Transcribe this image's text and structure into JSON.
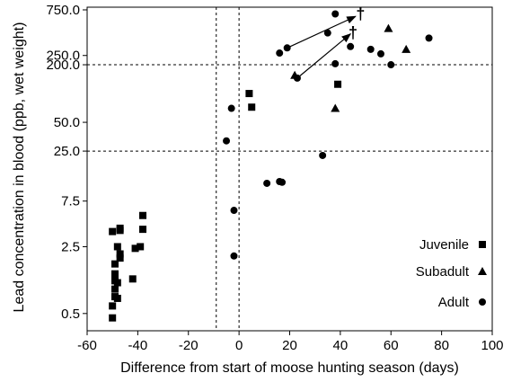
{
  "chart_data": {
    "type": "scatter",
    "xlabel": "Difference from start of moose hunting season (days)",
    "ylabel": "Lead concentration in blood (ppb, wet weight)",
    "xlim": [
      -60,
      100
    ],
    "x_ticks": [
      -60,
      -40,
      -20,
      0,
      20,
      40,
      60,
      80,
      100
    ],
    "y_scale": "log",
    "ylim": [
      0.33,
      800
    ],
    "y_ticks": [
      0.5,
      2.5,
      7.5,
      25.0,
      50.0,
      200.0,
      250.0,
      750.0
    ],
    "y_tick_labels": [
      "0.5",
      "2.5",
      "7.5",
      "25.0",
      "50.0",
      "200.0",
      "250.0",
      "750.0"
    ],
    "reference_lines": {
      "vertical": [
        -9,
        0
      ],
      "horizontal": [
        25,
        200
      ]
    },
    "legend_position": "bottom-right",
    "series": [
      {
        "name": "Juvenile",
        "marker": "square",
        "points": [
          [
            -50,
            0.45
          ],
          [
            -50,
            0.6
          ],
          [
            -49,
            0.75
          ],
          [
            -48,
            0.72
          ],
          [
            -49,
            0.9
          ],
          [
            -49,
            1.1
          ],
          [
            -48,
            1.05
          ],
          [
            -49,
            1.3
          ],
          [
            -42,
            1.15
          ],
          [
            -49,
            1.65
          ],
          [
            -48,
            2.5
          ],
          [
            -47,
            1.9
          ],
          [
            -47,
            2.1
          ],
          [
            -50,
            3.6
          ],
          [
            -47,
            3.7
          ],
          [
            -47,
            3.9
          ],
          [
            -41,
            2.4
          ],
          [
            -39,
            2.5
          ],
          [
            -38,
            3.8
          ],
          [
            -38,
            5.3
          ],
          [
            4,
            100
          ],
          [
            5,
            72
          ],
          [
            39,
            125
          ]
        ]
      },
      {
        "name": "Subadult",
        "marker": "triangle",
        "points": [
          [
            22,
            155
          ],
          [
            38,
            70
          ],
          [
            59,
            480
          ],
          [
            66,
            290
          ]
        ]
      },
      {
        "name": "Adult",
        "marker": "circle",
        "points": [
          [
            -5,
            32
          ],
          [
            -3,
            70
          ],
          [
            -2,
            6
          ],
          [
            -2,
            2
          ],
          [
            11,
            11.5
          ],
          [
            16,
            12
          ],
          [
            17,
            11.8
          ],
          [
            16,
            265
          ],
          [
            19,
            300
          ],
          [
            23,
            145
          ],
          [
            33,
            22.5
          ],
          [
            35,
            430
          ],
          [
            38,
            680
          ],
          [
            38,
            205
          ],
          [
            44,
            310
          ],
          [
            52,
            290
          ],
          [
            56,
            260
          ],
          [
            60,
            200
          ],
          [
            75,
            380
          ]
        ]
      }
    ],
    "annotations": [
      {
        "type": "arrow",
        "from": [
          19,
          300
        ],
        "to": [
          46,
          640
        ]
      },
      {
        "type": "arrow",
        "from": [
          23,
          145
        ],
        "to": [
          44,
          420
        ]
      },
      {
        "type": "text",
        "text": "†",
        "at": [
          48,
          680
        ]
      },
      {
        "type": "text",
        "text": "†",
        "at": [
          45,
          430
        ]
      }
    ]
  }
}
